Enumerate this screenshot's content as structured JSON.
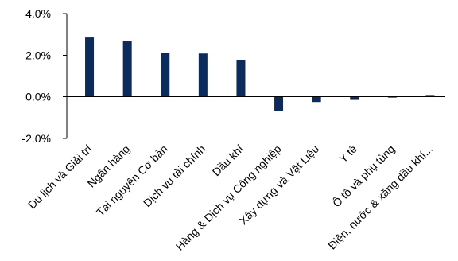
{
  "chart_data": {
    "type": "bar",
    "title": "",
    "xlabel": "",
    "ylabel": "",
    "categories": [
      "Du lịch và Giải trí",
      "Ngân hàng",
      "Tài nguyên Cơ bản",
      "Dịch vụ tài chính",
      "Dầu khí",
      "Hàng & Dịch vụ Công nghiệp",
      "Xây dựng và Vật Liệu",
      "Y tế",
      "Ô tô và phụ tùng",
      "Điện, nước & xăng dầu khí..."
    ],
    "values": [
      2.85,
      2.7,
      2.12,
      2.08,
      1.75,
      -0.68,
      -0.25,
      -0.15,
      -0.02,
      0.05
    ],
    "ylim": [
      -2.0,
      4.0
    ],
    "yticks": [
      4.0,
      2.0,
      0.0,
      -2.0
    ],
    "ytick_labels": [
      "4.0%",
      "2.0%",
      "0.0%",
      "-2.0%"
    ],
    "grid": false,
    "legend": "none",
    "colors": {
      "bar": "#0b2b5c",
      "axis": "#000000",
      "text": "#000000"
    }
  }
}
